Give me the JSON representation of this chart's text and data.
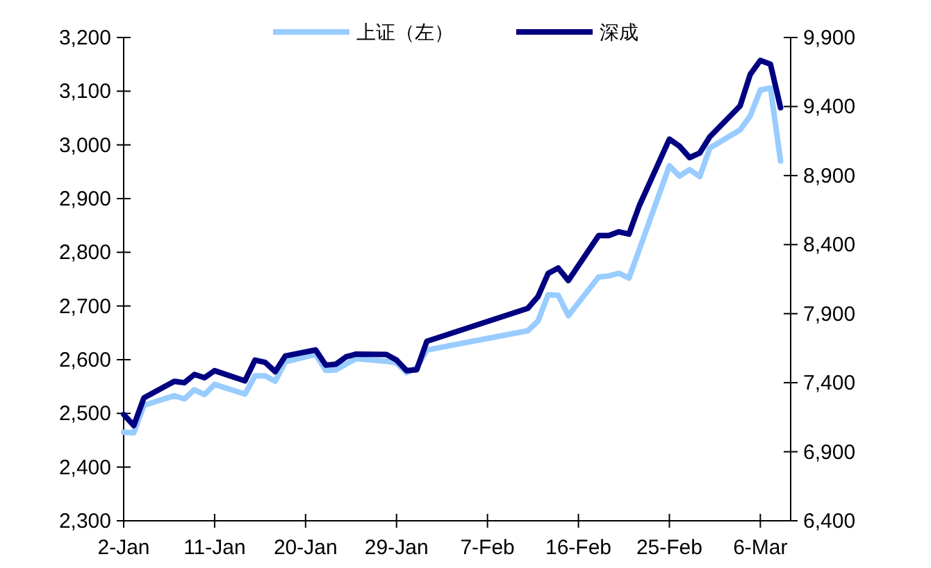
{
  "chart_data": {
    "type": "line",
    "x": [
      "--01-02",
      "--01-03",
      "--01-04",
      "--01-07",
      "--01-08",
      "--01-09",
      "--01-10",
      "--01-11",
      "--01-14",
      "--01-15",
      "--01-16",
      "--01-17",
      "--01-18",
      "--01-21",
      "--01-22",
      "--01-23",
      "--01-24",
      "--01-25",
      "--01-28",
      "--01-29",
      "--01-30",
      "--01-31",
      "--02-01",
      "--02-11",
      "--02-12",
      "--02-13",
      "--02-14",
      "--02-15",
      "--02-18",
      "--02-19",
      "--02-20",
      "--02-21",
      "--02-22",
      "--02-25",
      "--02-26",
      "--02-27",
      "--02-28",
      "--03-01",
      "--03-04",
      "--03-05",
      "--03-06",
      "--03-07",
      "--03-08"
    ],
    "series": [
      {
        "name": "上证（左）",
        "color": "#99ccff",
        "values": [
          2465,
          2464,
          2515,
          2533,
          2527,
          2544,
          2535,
          2554,
          2536,
          2570,
          2570,
          2560,
          2596,
          2610,
          2580,
          2581,
          2592,
          2602,
          2597,
          2594,
          2576,
          2585,
          2618,
          2654,
          2672,
          2721,
          2720,
          2682,
          2754,
          2756,
          2761,
          2752,
          2804,
          2961,
          2942,
          2954,
          2941,
          2994,
          3028,
          3054,
          3102,
          3106,
          2970
        ]
      },
      {
        "name": "深成",
        "color": "#000080",
        "axis": "y2",
        "values": [
          7170,
          7090,
          7290,
          7410,
          7400,
          7460,
          7436,
          7487,
          7413,
          7564,
          7547,
          7480,
          7594,
          7637,
          7527,
          7534,
          7587,
          7607,
          7604,
          7564,
          7487,
          7494,
          7700,
          7939,
          8024,
          8191,
          8231,
          8140,
          8466,
          8466,
          8493,
          8476,
          8678,
          9164,
          9113,
          9030,
          9063,
          9181,
          9405,
          9633,
          9734,
          9707,
          9392
        ]
      }
    ],
    "xlim": [
      "--01-02",
      "--03-09"
    ],
    "xticks": [
      {
        "value": "--01-02",
        "label": "2-Jan"
      },
      {
        "value": "--01-11",
        "label": "11-Jan"
      },
      {
        "value": "--01-20",
        "label": "20-Jan"
      },
      {
        "value": "--01-29",
        "label": "29-Jan"
      },
      {
        "value": "--02-07",
        "label": "7-Feb"
      },
      {
        "value": "--02-16",
        "label": "16-Feb"
      },
      {
        "value": "--02-25",
        "label": "25-Feb"
      },
      {
        "value": "--03-06",
        "label": "6-Mar"
      }
    ],
    "ylim": [
      2300,
      3200
    ],
    "yticks": [
      {
        "value": 2300,
        "label": "2,300"
      },
      {
        "value": 2400,
        "label": "2,400"
      },
      {
        "value": 2500,
        "label": "2,500"
      },
      {
        "value": 2600,
        "label": "2,600"
      },
      {
        "value": 2700,
        "label": "2,700"
      },
      {
        "value": 2800,
        "label": "2,800"
      },
      {
        "value": 2900,
        "label": "2,900"
      },
      {
        "value": 3000,
        "label": "3,000"
      },
      {
        "value": 3100,
        "label": "3,100"
      },
      {
        "value": 3200,
        "label": "3,200"
      }
    ],
    "y2lim": [
      6400,
      9900
    ],
    "y2ticks": [
      {
        "value": 6400,
        "label": "6,400"
      },
      {
        "value": 6900,
        "label": "6,900"
      },
      {
        "value": 7400,
        "label": "7,400"
      },
      {
        "value": 7900,
        "label": "7,900"
      },
      {
        "value": 8400,
        "label": "8,400"
      },
      {
        "value": 8900,
        "label": "8,900"
      },
      {
        "value": 9400,
        "label": "9,400"
      },
      {
        "value": 9900,
        "label": "9,900"
      }
    ],
    "legend": "top"
  }
}
